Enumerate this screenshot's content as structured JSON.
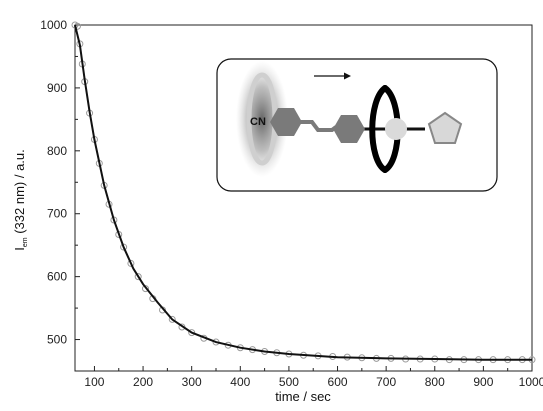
{
  "chart_data": {
    "type": "scatter",
    "xlabel": "time / sec",
    "ylabel": {
      "main": "I",
      "subscript": "em",
      "rest": " (332 nm) / a.u."
    },
    "xlim": [
      60,
      1000
    ],
    "ylim": [
      450,
      1000
    ],
    "xticks": [
      "100",
      "200",
      "300",
      "400",
      "500",
      "600",
      "700",
      "800",
      "900",
      "1000"
    ],
    "yticks": [
      "500",
      "600",
      "700",
      "800",
      "900",
      "1000"
    ],
    "grid": false,
    "series": [
      {
        "kind": "measured points",
        "color": "#9a9a9a",
        "x": [
          60,
          65,
          70,
          75,
          80,
          90,
          100,
          110,
          120,
          130,
          140,
          150,
          160,
          175,
          190,
          205,
          220,
          240,
          260,
          280,
          300,
          325,
          350,
          375,
          400,
          425,
          450,
          475,
          500,
          530,
          560,
          590,
          620,
          650,
          680,
          710,
          740,
          770,
          800,
          830,
          860,
          890,
          920,
          950,
          980,
          1000
        ],
        "y": [
          1000,
          998,
          970,
          938,
          910,
          860,
          818,
          780,
          745,
          715,
          690,
          667,
          647,
          621,
          600,
          581,
          565,
          547,
          532,
          520,
          511,
          502,
          496,
          491,
          487,
          484,
          481,
          479,
          477,
          475,
          474,
          473,
          472,
          471,
          470,
          470,
          469,
          469,
          469,
          468,
          468,
          468,
          468,
          468,
          468,
          468
        ]
      },
      {
        "kind": "exponential fit",
        "color": "#111111",
        "x": [
          60,
          70,
          80,
          90,
          100,
          120,
          140,
          160,
          180,
          200,
          230,
          260,
          300,
          350,
          400,
          450,
          500,
          600,
          700,
          800,
          900,
          1000
        ],
        "y": [
          1000,
          968,
          913,
          862,
          818,
          745,
          690,
          647,
          613,
          588,
          559,
          532,
          511,
          496,
          487,
          481,
          477,
          472,
          470,
          469,
          468,
          468
        ]
      }
    ]
  },
  "inset": {
    "cn_label": "CN",
    "colors": {
      "outline": "#000000",
      "ring": "#c8c8c8",
      "glow": "#777777",
      "hexagon": "#7a7a7a",
      "bead": "#dadada",
      "stopper": "#d8d8d8"
    }
  }
}
